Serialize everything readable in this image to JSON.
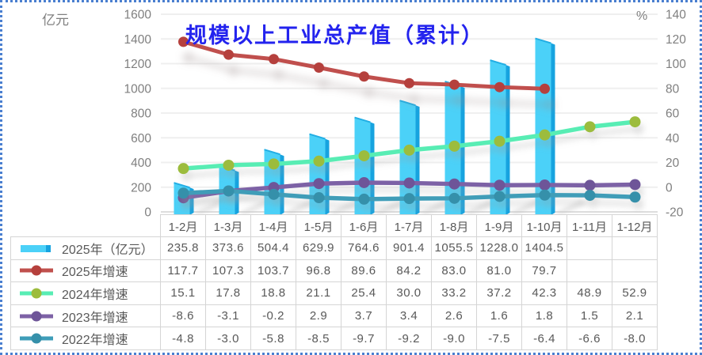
{
  "frame": {
    "border_color": "#4a7fd0",
    "background": "#ffffff"
  },
  "chart_data": {
    "type": "combo-bar-line",
    "title": "规模以上工业总产值（累计）",
    "title_color": "#2323ee",
    "categories": [
      "1-2月",
      "1-3月",
      "1-4月",
      "1-5月",
      "1-6月",
      "1-7月",
      "1-8月",
      "1-9月",
      "1-10月",
      "1-11月",
      "1-12月"
    ],
    "left_axis": {
      "label": "亿元",
      "min": 0,
      "max": 1600,
      "step": 200,
      "ticks": [
        1600,
        1400,
        1200,
        1000,
        800,
        600,
        400,
        200,
        0
      ]
    },
    "right_axis": {
      "label": "%",
      "min": -20,
      "max": 140,
      "step": 20,
      "ticks": [
        140,
        120,
        100,
        80,
        60,
        40,
        20,
        0,
        -20
      ]
    },
    "grid": true,
    "legend_position": "table-left-column",
    "series": [
      {
        "name": "2025年（亿元）",
        "type": "bar",
        "axis": "left",
        "color": "#4bd1f8",
        "side_color": "#17a3df",
        "edge_color": "#22aee4",
        "values": [
          235.8,
          373.6,
          504.4,
          629.9,
          764.6,
          901.4,
          1055.5,
          1228.0,
          1404.5,
          null,
          null
        ]
      },
      {
        "name": "2025年增速",
        "type": "line",
        "axis": "right",
        "color": "#c0504d",
        "marker_color": "#b5403c",
        "values": [
          117.7,
          107.3,
          103.7,
          96.8,
          89.6,
          84.2,
          83.0,
          81.0,
          79.7,
          null,
          null
        ]
      },
      {
        "name": "2024年增速",
        "type": "line",
        "axis": "right",
        "color": "#58edb4",
        "marker_color": "#9cbc3c",
        "values": [
          15.1,
          17.8,
          18.8,
          21.1,
          25.4,
          30.0,
          33.2,
          37.2,
          42.3,
          48.9,
          52.9
        ]
      },
      {
        "name": "2023年增速",
        "type": "line",
        "axis": "right",
        "color": "#7d62a6",
        "marker_color": "#6e5598",
        "values": [
          -8.6,
          -3.1,
          -0.2,
          2.9,
          3.7,
          3.4,
          2.6,
          1.6,
          1.8,
          1.5,
          2.1
        ]
      },
      {
        "name": "2022年增速",
        "type": "line",
        "axis": "right",
        "color": "#3f9db8",
        "marker_color": "#3690aa",
        "values": [
          -4.8,
          -3.0,
          -5.8,
          -8.5,
          -9.7,
          -9.2,
          -9.0,
          -7.5,
          -6.4,
          -6.6,
          -8.0
        ]
      }
    ]
  },
  "table": {
    "empty_cell": "",
    "decimals": 1
  }
}
